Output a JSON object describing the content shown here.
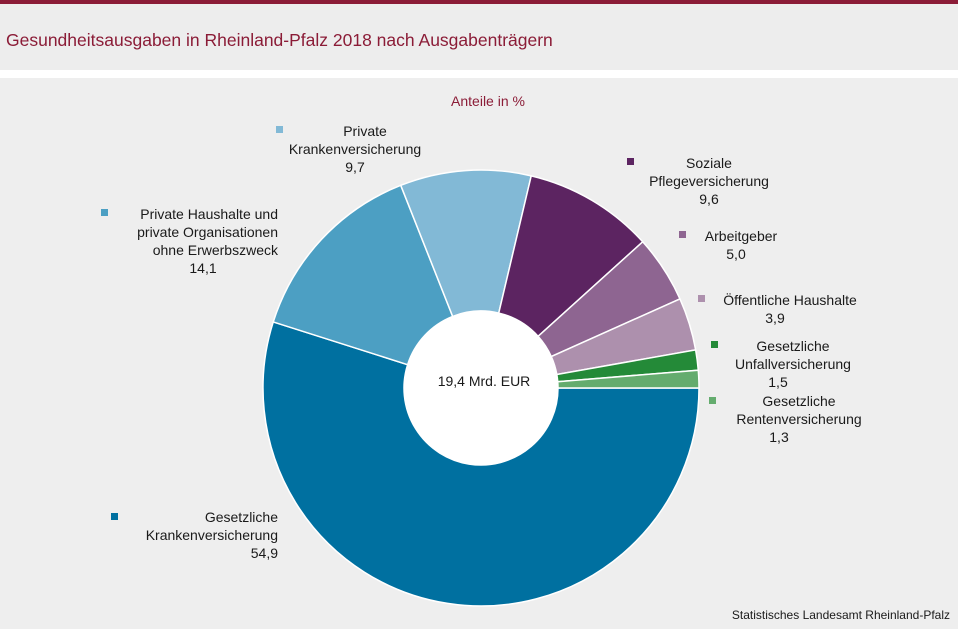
{
  "header": {
    "title": "Gesundheitsausgaben in Rheinland-Pfalz 2018 nach Ausgabenträgern"
  },
  "chart_data": {
    "type": "pie",
    "subtitle": "Anteile in %",
    "center_label": "19,4 Mrd. EUR",
    "slices": [
      {
        "name": "Gesetzliche Krankenversicherung",
        "value": 54.9,
        "label": "54,9",
        "color": "#0070a0"
      },
      {
        "name": "Private Haushalte und private Organisationen ohne Erwerbszweck",
        "value": 14.1,
        "label": "14,1",
        "color": "#4c9fc3"
      },
      {
        "name": "Private Krankenversicherung",
        "value": 9.7,
        "label": "9,7",
        "color": "#82b9d6"
      },
      {
        "name": "Soziale Pflegeversicherung",
        "value": 9.6,
        "label": "9,6",
        "color": "#5c2461"
      },
      {
        "name": "Arbeitgeber",
        "value": 5.0,
        "label": "5,0",
        "color": "#8e6591"
      },
      {
        "name": "Öffentliche Haushalte",
        "value": 3.9,
        "label": "3,9",
        "color": "#ad90ad"
      },
      {
        "name": "Gesetzliche Unfallversicherung",
        "value": 1.5,
        "label": "1,5",
        "color": "#248a38"
      },
      {
        "name": "Gesetzliche Rentenversicherung",
        "value": 1.3,
        "label": "1,3",
        "color": "#64ac6e"
      }
    ],
    "labels": {
      "gkv": [
        "Gesetzliche",
        "Krankenversicherung"
      ],
      "phh": [
        "Private Haushalte  und",
        "private Organisationen",
        "ohne Erwerbszweck"
      ],
      "pkv": [
        "Private",
        "Krankenversicherung"
      ],
      "spv": [
        "Soziale",
        "Pflegeversicherung"
      ],
      "ag": [
        "Arbeitgeber"
      ],
      "oeh": [
        "Öffentliche  Haushalte"
      ],
      "guv": [
        "Gesetzliche",
        "Unfallversicherung"
      ],
      "grv": [
        "Gesetzliche",
        "Rentenversicherung"
      ]
    }
  },
  "footer": {
    "source": "Statistisches Landesamt Rheinland-Pfalz"
  }
}
